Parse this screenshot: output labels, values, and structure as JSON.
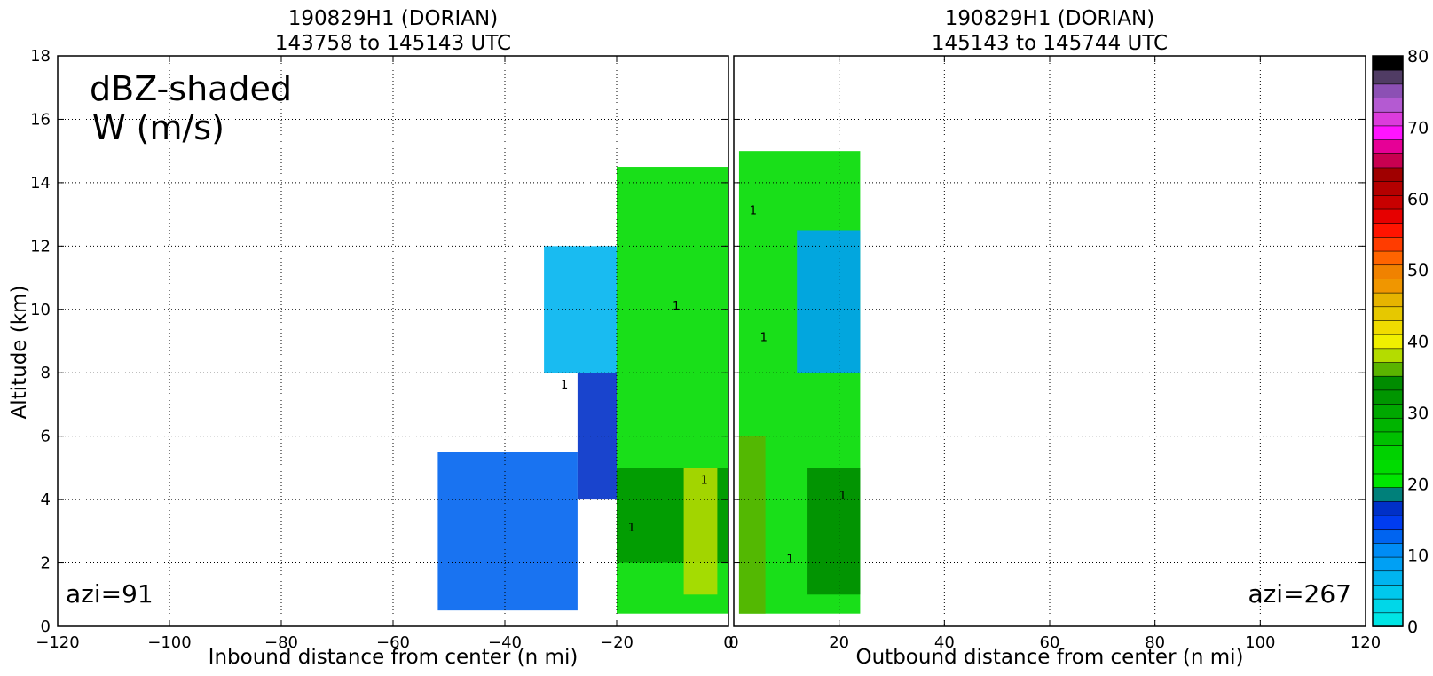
{
  "chart_data": [
    {
      "type": "contour",
      "title": [
        "190829H1 (DORIAN)",
        "143758 to 145143 UTC"
      ],
      "xlabel": "Inbound distance from center (n mi)",
      "ylabel": "Altitude (km)",
      "xlim": [
        -120,
        0
      ],
      "ylim": [
        0,
        18
      ],
      "xticks": [
        -120,
        -100,
        -80,
        -60,
        -40,
        -20,
        0
      ],
      "yticks": [
        0,
        2,
        4,
        6,
        8,
        10,
        12,
        14,
        16,
        18
      ],
      "grid": true,
      "annotation_top_left": [
        "dBZ-shaded",
        "W (m/s)"
      ],
      "annotation_bottom_left": "azi=91",
      "contour_label": "1",
      "reflectivity_regions": [
        {
          "x": [
            -52,
            -27
          ],
          "y": [
            0.5,
            5.5
          ],
          "dbz": 12
        },
        {
          "x": [
            -27,
            -20
          ],
          "y": [
            4,
            8
          ],
          "dbz": 15
        },
        {
          "x": [
            -33,
            -20
          ],
          "y": [
            8,
            12
          ],
          "dbz": 5
        },
        {
          "x": [
            -20,
            0
          ],
          "y": [
            0.4,
            14.5
          ],
          "dbz": 22
        },
        {
          "x": [
            -20,
            0
          ],
          "y": [
            2,
            5
          ],
          "dbz": 32
        },
        {
          "x": [
            -8,
            -2
          ],
          "y": [
            1,
            5
          ],
          "dbz": 37
        }
      ]
    },
    {
      "type": "contour",
      "title": [
        "190829H1 (DORIAN)",
        "145143 to 145744 UTC"
      ],
      "xlabel": "Outbound distance from center (n mi)",
      "xlim": [
        0,
        120
      ],
      "ylim": [
        0,
        18
      ],
      "xticks": [
        0,
        20,
        40,
        60,
        80,
        100,
        120
      ],
      "grid": true,
      "annotation_bottom_right": "azi=267",
      "contour_label": "1",
      "reflectivity_regions": [
        {
          "x": [
            1,
            24
          ],
          "y": [
            0.4,
            15
          ],
          "dbz": 22
        },
        {
          "x": [
            12,
            24
          ],
          "y": [
            8,
            12.5
          ],
          "dbz": 8
        },
        {
          "x": [
            1,
            6
          ],
          "y": [
            0.4,
            6
          ],
          "dbz": 35
        },
        {
          "x": [
            14,
            24
          ],
          "y": [
            1,
            5
          ],
          "dbz": 34
        }
      ]
    },
    {
      "type": "colorbar",
      "ticks": [
        0,
        10,
        20,
        30,
        40,
        50,
        60,
        70,
        80
      ],
      "range": [
        0,
        80
      ],
      "levels": 33,
      "colors": [
        "#00e5e5",
        "#00d7e8",
        "#00c8ec",
        "#00b4f0",
        "#00a0f4",
        "#008cf5",
        "#0064f0",
        "#003cf0",
        "#0030c8",
        "#00807a",
        "#00e600",
        "#00dc00",
        "#00d200",
        "#00c000",
        "#00b400",
        "#00a800",
        "#009600",
        "#008c00",
        "#5ab400",
        "#b4dc00",
        "#f0f000",
        "#f0dc00",
        "#e6c800",
        "#e6b400",
        "#f09600",
        "#f08200",
        "#ff6400",
        "#ff3c00",
        "#ff1400",
        "#e60000",
        "#c80000",
        "#b40000",
        "#a00000",
        "#c80050",
        "#e60096",
        "#ff14ff",
        "#dc3cdc",
        "#b45ad2",
        "#8c50b4",
        "#503c64",
        "#000000"
      ]
    }
  ]
}
